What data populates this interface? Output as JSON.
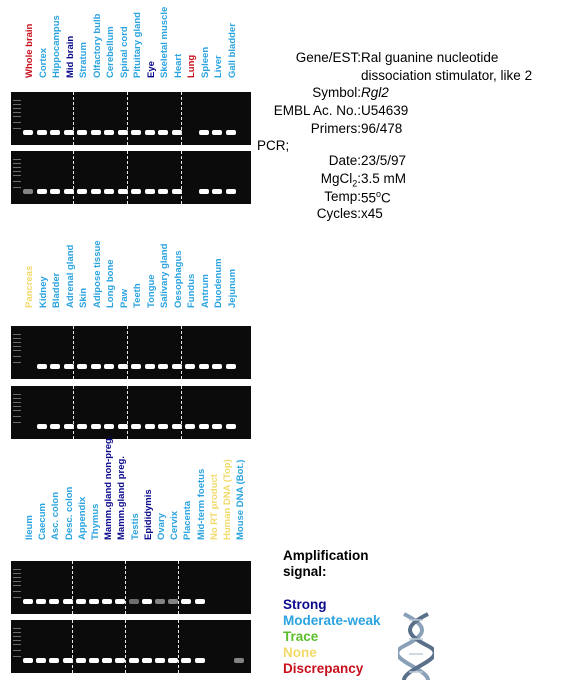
{
  "colors": {
    "strong": "#0a0a8c",
    "moderate": "#2aa3e0",
    "trace": "#5cbe2a",
    "none": "#f2da6a",
    "discrepancy": "#c8101c"
  },
  "panels": [
    {
      "labels": [
        {
          "text": "Whole brain",
          "level": "discrepancy"
        },
        {
          "text": "Cortex",
          "level": "moderate"
        },
        {
          "text": "Hippocampus",
          "level": "moderate"
        },
        {
          "text": "Mid brain",
          "level": "strong"
        },
        {
          "text": "Stratum",
          "level": "moderate"
        },
        {
          "text": "Olfactory bulb",
          "level": "moderate"
        },
        {
          "text": "Cerebellum",
          "level": "moderate"
        },
        {
          "text": "Spinal cord",
          "level": "moderate"
        },
        {
          "text": "Pituitary gland",
          "level": "moderate"
        },
        {
          "text": "Eye",
          "level": "strong"
        },
        {
          "text": "Skeletal muscle",
          "level": "moderate"
        },
        {
          "text": "Heart",
          "level": "moderate"
        },
        {
          "text": "Lung",
          "level": "discrepancy"
        },
        {
          "text": "Spleen",
          "level": "moderate"
        },
        {
          "text": "Liver",
          "level": "moderate"
        },
        {
          "text": "Gall bladder",
          "level": "moderate"
        }
      ],
      "gels": [
        {
          "lanes": [
            1,
            1,
            1,
            1,
            1,
            1,
            1,
            1,
            1,
            1,
            1,
            1,
            0,
            1,
            1,
            1
          ]
        },
        {
          "lanes": [
            0.5,
            1,
            1,
            1,
            1,
            1,
            1,
            1,
            1,
            1,
            1,
            1,
            0,
            1,
            1,
            1
          ]
        }
      ]
    },
    {
      "labels": [
        {
          "text": "Pancreas",
          "level": "none"
        },
        {
          "text": "Kidney",
          "level": "moderate"
        },
        {
          "text": "Bladder",
          "level": "moderate"
        },
        {
          "text": "Adrenal gland",
          "level": "moderate"
        },
        {
          "text": "Skin",
          "level": "moderate"
        },
        {
          "text": "Adipose tissue",
          "level": "moderate"
        },
        {
          "text": "Long bone",
          "level": "moderate"
        },
        {
          "text": "Paw",
          "level": "moderate"
        },
        {
          "text": "Teeth",
          "level": "moderate"
        },
        {
          "text": "Tongue",
          "level": "moderate"
        },
        {
          "text": "Salivary gland",
          "level": "moderate"
        },
        {
          "text": "Oesophagus",
          "level": "moderate"
        },
        {
          "text": "Fundus",
          "level": "moderate"
        },
        {
          "text": "Antrum",
          "level": "moderate"
        },
        {
          "text": "Duodenum",
          "level": "moderate"
        },
        {
          "text": "Jejunum",
          "level": "moderate"
        }
      ],
      "gels": [
        {
          "lanes": [
            0,
            1,
            1,
            1,
            1,
            1,
            1,
            1,
            1,
            1,
            1,
            1,
            1,
            1,
            1,
            1
          ]
        },
        {
          "lanes": [
            0,
            1,
            1,
            1,
            1,
            1,
            1,
            1,
            1,
            1,
            1,
            1,
            1,
            1,
            1,
            1
          ]
        }
      ]
    },
    {
      "labels": [
        {
          "text": "Ileum",
          "level": "moderate"
        },
        {
          "text": "Caecum",
          "level": "moderate"
        },
        {
          "text": "Asc. colon",
          "level": "moderate"
        },
        {
          "text": "Desc. colon",
          "level": "moderate"
        },
        {
          "text": "Appendix",
          "level": "moderate"
        },
        {
          "text": "Thymus",
          "level": "moderate"
        },
        {
          "text": "Mamm.gland non-preg.",
          "level": "strong"
        },
        {
          "text": "Mamm.gland preg.",
          "level": "strong"
        },
        {
          "text": "Testis",
          "level": "moderate"
        },
        {
          "text": "Epididymis",
          "level": "strong"
        },
        {
          "text": "Ovary",
          "level": "moderate"
        },
        {
          "text": "Cervix",
          "level": "moderate"
        },
        {
          "text": "Placenta",
          "level": "moderate"
        },
        {
          "text": "Mid-term foetus",
          "level": "moderate"
        },
        {
          "text": "No RT product",
          "level": "none"
        },
        {
          "text": "Human DNA (Top)",
          "level": "none"
        },
        {
          "text": "Mouse DNA (Bot.)",
          "level": "moderate"
        }
      ],
      "gels": [
        {
          "lanes": [
            1,
            1,
            1,
            1,
            1,
            1,
            1,
            1,
            0.4,
            1,
            0.5,
            0.5,
            1,
            1,
            0,
            0,
            0
          ]
        },
        {
          "lanes": [
            1,
            1,
            1,
            1,
            1,
            1,
            1,
            1,
            1,
            1,
            1,
            1,
            1,
            1,
            0,
            0,
            0.5
          ]
        }
      ]
    }
  ],
  "info": {
    "gene_label": "Gene/EST:",
    "gene_line1": "Ral guanine nucleotide",
    "gene_line2": "dissociation stimulator, like 2",
    "symbol_label": "Symbol:",
    "symbol": "Rgl2",
    "embl_label": "EMBL Ac. No.:",
    "embl": "U54639",
    "primers_label": "Primers:",
    "primers": "96/478",
    "pcr_label": "PCR;",
    "date_label": "Date:",
    "date": "23/5/97",
    "mgcl2_label_pre": "MgCl",
    "mgcl2_label_sub": "2",
    "mgcl2_label_post": ":",
    "mgcl2": "3.5 mM",
    "temp_label": "Temp:",
    "temp_value": "55",
    "temp_sup": "o",
    "temp_unit": "C",
    "cycles_label": "Cycles:",
    "cycles": "x45"
  },
  "legend": {
    "title_line1": "Amplification",
    "title_line2": "signal:",
    "strong": "Strong",
    "moderate": "Moderate-weak",
    "trace": "Trace",
    "none": "None",
    "discrepancy": "Discrepancy"
  }
}
